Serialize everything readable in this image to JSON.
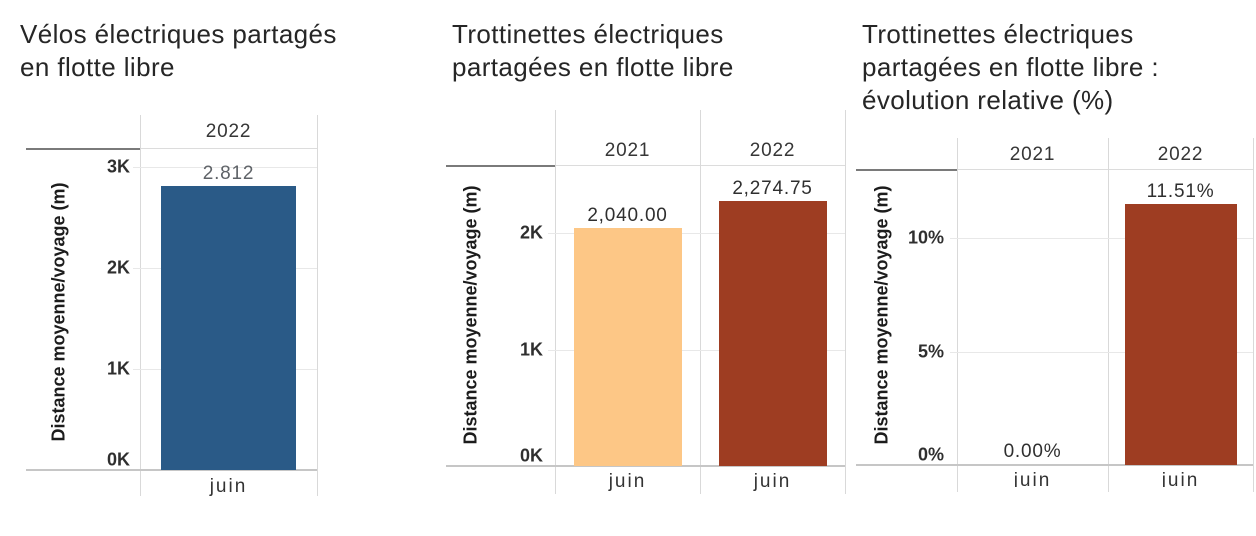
{
  "chart_data": [
    {
      "type": "bar",
      "title": "Vélos électriques partagés en flotte libre",
      "title_lines": [
        "Vélos électriques partagés",
        "en flotte libre"
      ],
      "ylabel": "Distance moyenne/voyage (m)",
      "ylim": [
        0,
        3200
      ],
      "yticks": [
        {
          "value": 0,
          "label": "0K"
        },
        {
          "value": 1000,
          "label": "1K"
        },
        {
          "value": 2000,
          "label": "2K"
        },
        {
          "value": 3000,
          "label": "3K"
        }
      ],
      "grid": true,
      "legend": "none",
      "series": [
        {
          "name": "2022",
          "x": "juin",
          "value": 2812,
          "value_label": "2.812",
          "bar_color": "#2a5a87",
          "value_label_color": "#5f6368"
        }
      ]
    },
    {
      "type": "bar",
      "title": "Trottinettes électriques partagées en flotte libre",
      "title_lines": [
        "Trottinettes électriques",
        "partagées en flotte libre"
      ],
      "ylabel": "Distance moyenne/voyage (m)",
      "ylim": [
        0,
        2580
      ],
      "yticks": [
        {
          "value": 0,
          "label": "0K"
        },
        {
          "value": 1000,
          "label": "1K"
        },
        {
          "value": 2000,
          "label": "2K"
        }
      ],
      "grid": true,
      "legend": "none",
      "series": [
        {
          "name": "2021",
          "x": "juin",
          "value": 2040,
          "value_label": "2,040.00",
          "bar_color": "#fdc786",
          "value_label_color": "#2f2f2f"
        },
        {
          "name": "2022",
          "x": "juin",
          "value": 2274.75,
          "value_label": "2,274.75",
          "bar_color": "#9e3d22",
          "value_label_color": "#2f2f2f"
        }
      ]
    },
    {
      "type": "bar",
      "title": "Trottinettes électriques partagées en flotte libre : évolution relative (%)",
      "title_lines": [
        "Trottinettes électriques",
        "partagées en flotte libre :",
        "évolution relative (%)"
      ],
      "ylabel": "Distance moyenne/voyage (m)",
      "ylim": [
        0,
        13
      ],
      "yticks": [
        {
          "value": 0,
          "label": "0%"
        },
        {
          "value": 5,
          "label": "5%"
        },
        {
          "value": 10,
          "label": "10%"
        }
      ],
      "grid": true,
      "legend": "none",
      "series": [
        {
          "name": "2021",
          "x": "juin",
          "value": 0,
          "value_label": "0.00%",
          "bar_color": "#9e3d22",
          "value_label_color": "#2f2f2f"
        },
        {
          "name": "2022",
          "x": "juin",
          "value": 11.51,
          "value_label": "11.51%",
          "bar_color": "#9e3d22",
          "value_label_color": "#2f2f2f"
        }
      ]
    }
  ],
  "colors": {
    "background": "#ffffff",
    "bar_blue": "#2a5a87",
    "bar_light_orange": "#fdc786",
    "bar_rust": "#9e3d22",
    "gridline": "#e8e8e8",
    "column_separator": "#d9d9d9",
    "axis_bottom_line": "#c6c6c6",
    "axis_header_rule": "#7a7a7a",
    "title_text": "#262626",
    "tick_text": "#2f2f2f"
  }
}
